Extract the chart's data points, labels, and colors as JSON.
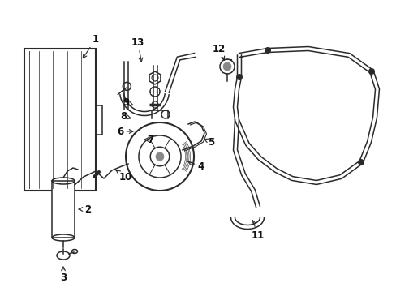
{
  "bg_color": "#ffffff",
  "line_color": "#2a2a2a",
  "label_color": "#111111",
  "label_fontsize": 8.5,
  "figsize": [
    4.89,
    3.6
  ],
  "dpi": 100
}
